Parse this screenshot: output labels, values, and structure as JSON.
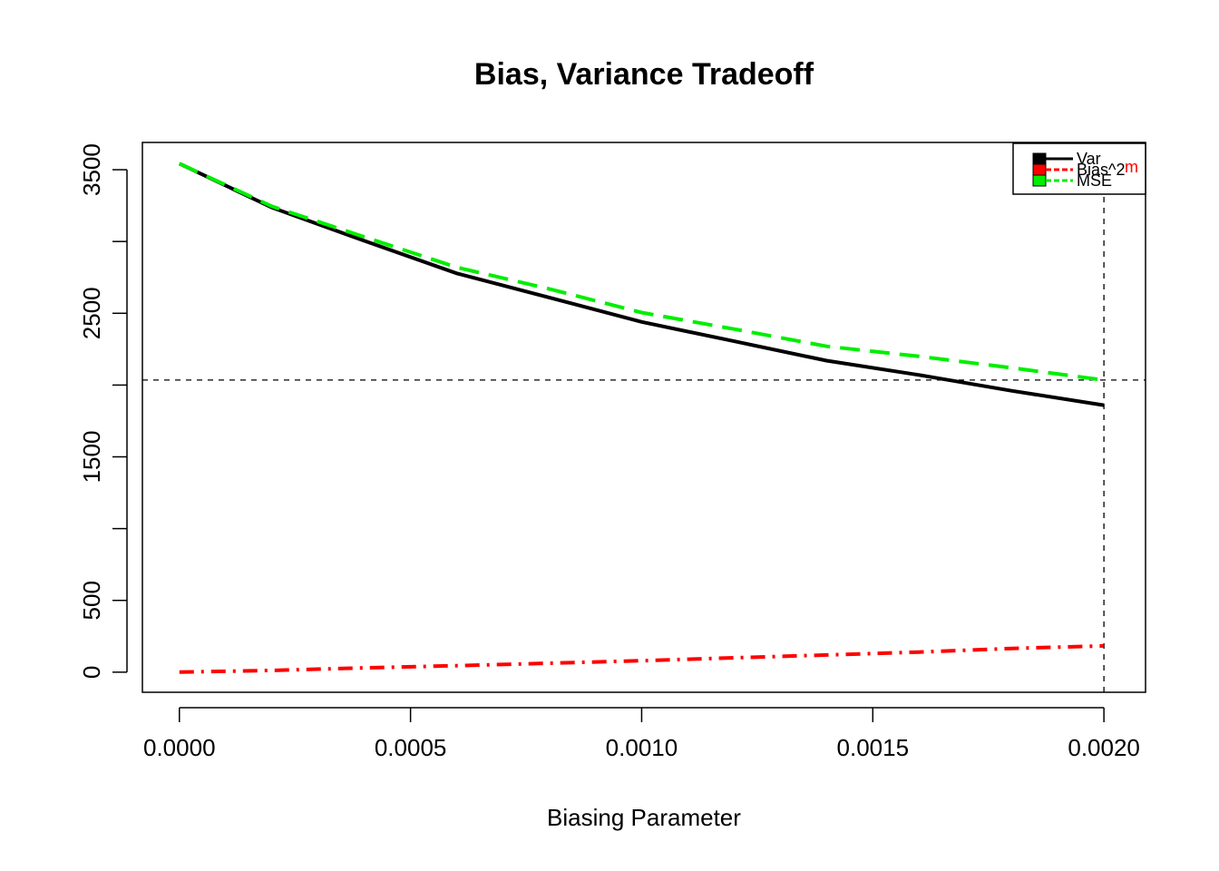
{
  "chart_data": {
    "type": "line",
    "title": "Bias, Variance Tradeoff",
    "xlabel": "Biasing Parameter",
    "ylabel": "",
    "xlim": [
      -8e-05,
      0.00209
    ],
    "ylim": [
      -140,
      3690
    ],
    "x_ticks": [
      0,
      0.0005,
      0.001,
      0.0015,
      0.002
    ],
    "x_tick_labels": [
      "0.0000",
      "0.0005",
      "0.0010",
      "0.0015",
      "0.0020"
    ],
    "y_ticks": [
      0,
      500,
      1000,
      1500,
      2000,
      2500,
      3000,
      3500
    ],
    "y_tick_labels": [
      "0",
      "500",
      "",
      "1500",
      "",
      "2500",
      "",
      "3500"
    ],
    "x": [
      0,
      0.0002,
      0.0004,
      0.0006,
      0.0008,
      0.001,
      0.0012,
      0.0014,
      0.0016,
      0.0018,
      0.002
    ],
    "series": [
      {
        "name": "Var",
        "color": "#000000",
        "dash": "solid",
        "values": [
          3543,
          3237,
          3005,
          2778,
          2610,
          2440,
          2305,
          2170,
          2070,
          1960,
          1860
        ]
      },
      {
        "name": "Bias^2",
        "color": "#ff0000",
        "dash": "dashdot",
        "values": [
          0,
          12,
          30,
          45,
          62,
          80,
          100,
          120,
          140,
          165,
          183
        ]
      },
      {
        "name": "MSE",
        "color": "#00ee00",
        "dash": "dashed",
        "values": [
          3543,
          3245,
          3032,
          2820,
          2670,
          2505,
          2390,
          2270,
          2200,
          2120,
          2035
        ]
      }
    ],
    "vline_x": 0.002,
    "hline_y": 2035,
    "legend_position": "top-right",
    "legend_extra_text": "m",
    "legend_extra_color": "#ff0000",
    "grid": false
  }
}
